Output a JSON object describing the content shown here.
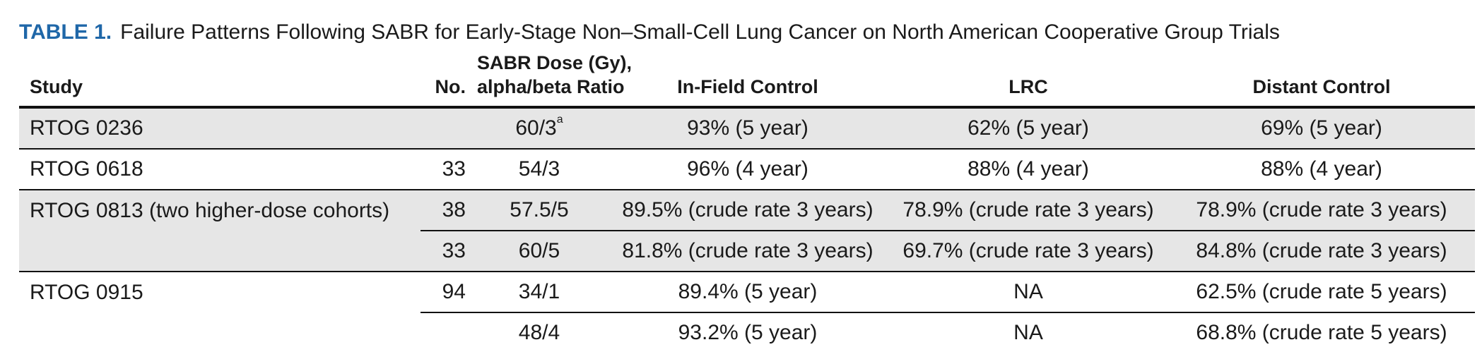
{
  "caption": {
    "label": "TABLE 1.",
    "title": "Failure Patterns Following SABR for Early-Stage Non–Small-Cell Lung Cancer on North American Cooperative Group Trials"
  },
  "headers": {
    "study": "Study",
    "no": "No.",
    "dose_line1": "SABR Dose (Gy),",
    "dose_line2": "alpha/beta Ratio",
    "infield": "In-Field Control",
    "lrc": "LRC",
    "distant": "Distant Control"
  },
  "rows": [
    {
      "study": "RTOG 0236",
      "no": "",
      "dose": "60/3",
      "dose_sup": "a",
      "infield": "93% (5 year)",
      "lrc": "62% (5 year)",
      "distant": "69% (5 year)"
    },
    {
      "study": "RTOG 0618",
      "no": "33",
      "dose": "54/3",
      "infield": "96% (4 year)",
      "lrc": "88% (4 year)",
      "distant": "88% (4 year)"
    },
    {
      "study": "RTOG 0813 (two higher-dose cohorts)",
      "no": "38",
      "dose": "57.5/5",
      "infield": "89.5% (crude rate 3 years)",
      "lrc": "78.9% (crude rate 3 years)",
      "distant": "78.9% (crude rate 3 years)"
    },
    {
      "study": "",
      "no": "33",
      "dose": "60/5",
      "infield": "81.8% (crude rate 3 years)",
      "lrc": "69.7% (crude rate 3 years)",
      "distant": "84.8% (crude rate 3 years)"
    },
    {
      "study": "RTOG 0915",
      "no": "94",
      "dose": "34/1",
      "infield": "89.4% (5 year)",
      "lrc": "NA",
      "distant": "62.5% (crude rate 5 years)"
    },
    {
      "study": "",
      "no": "",
      "dose": "48/4",
      "infield": "93.2% (5 year)",
      "lrc": "NA",
      "distant": "68.8% (crude rate 5 years)"
    }
  ]
}
